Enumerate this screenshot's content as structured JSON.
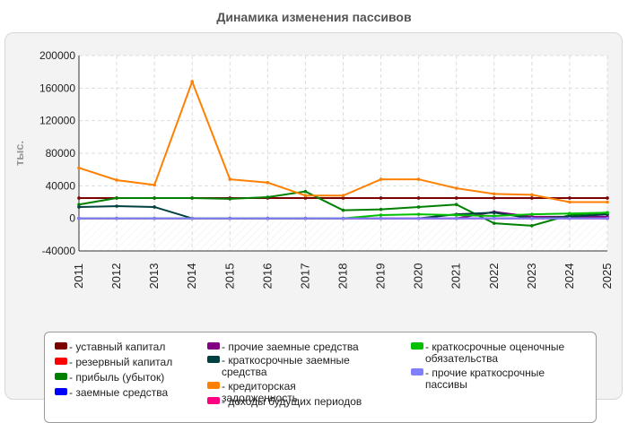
{
  "chart_data": {
    "type": "line",
    "title": "Динамика изменения пассивов",
    "ylabel": "тыс.",
    "xlabel": "",
    "x": [
      "2011",
      "2012",
      "2013",
      "2014",
      "2015",
      "2016",
      "2017",
      "2018",
      "2019",
      "2020",
      "2021",
      "2022",
      "2023",
      "2024",
      "2025"
    ],
    "ylim": [
      -40000,
      200000
    ],
    "yticks": [
      200000,
      160000,
      120000,
      80000,
      40000,
      0,
      -40000
    ],
    "grid": true,
    "legend_position": "bottom",
    "series": [
      {
        "name": "- уставный капитал",
        "color": "#7a0000",
        "values": [
          25000,
          25000,
          25000,
          25000,
          25000,
          25000,
          25000,
          25000,
          25000,
          25000,
          25000,
          25000,
          25000,
          25000,
          25000
        ]
      },
      {
        "name": "- резервный капитал",
        "color": "#ff0000",
        "values": [
          0,
          0,
          0,
          0,
          0,
          0,
          0,
          0,
          0,
          0,
          0,
          0,
          0,
          0,
          0
        ]
      },
      {
        "name": "- прибыль (убыток)",
        "color": "#008000",
        "values": [
          17000,
          25000,
          25000,
          25000,
          24000,
          26000,
          33000,
          10000,
          11000,
          14000,
          17000,
          -6000,
          -9000,
          4000,
          7000
        ]
      },
      {
        "name": "- заемные средства",
        "color": "#0000ff",
        "values": [
          0,
          0,
          0,
          0,
          0,
          0,
          0,
          0,
          0,
          0,
          0,
          0,
          0,
          0,
          0
        ]
      },
      {
        "name": "- прочие заемные средства",
        "color": "#800080",
        "values": [
          0,
          0,
          0,
          0,
          0,
          0,
          0,
          0,
          0,
          0,
          0,
          8000,
          2000,
          2000,
          2000
        ]
      },
      {
        "name": "- краткосрочные заемные средства",
        "color": "#004040",
        "values": [
          14000,
          15000,
          14000,
          0,
          0,
          0,
          0,
          0,
          0,
          0,
          5000,
          7000,
          0,
          2000,
          5000
        ]
      },
      {
        "name": "- кредиторская задолженность",
        "color": "#ff8000",
        "values": [
          62000,
          47000,
          41000,
          168000,
          48000,
          44000,
          28000,
          28000,
          48000,
          48000,
          37000,
          30000,
          29000,
          20000,
          20000
        ]
      },
      {
        "name": "- доходы будущих периодов",
        "color": "#ff0080",
        "values": [
          0,
          0,
          0,
          0,
          0,
          0,
          0,
          0,
          0,
          0,
          0,
          0,
          0,
          0,
          0
        ]
      },
      {
        "name": "- краткосрочные оценочные обязательства",
        "color": "#00c000",
        "values": [
          0,
          0,
          0,
          0,
          0,
          0,
          0,
          0,
          4000,
          5000,
          4000,
          3000,
          5000,
          6000,
          7000
        ]
      },
      {
        "name": "- прочие краткосрочные пассивы",
        "color": "#8080ff",
        "values": [
          0,
          0,
          0,
          0,
          0,
          0,
          0,
          0,
          0,
          0,
          0,
          0,
          0,
          0,
          0
        ]
      }
    ]
  }
}
